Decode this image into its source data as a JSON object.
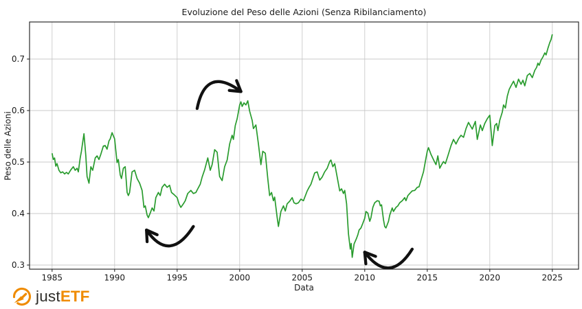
{
  "chart_data": {
    "type": "line",
    "title": "Evoluzione del Peso delle Azioni (Senza Ribilanciamento)",
    "xlabel": "Data",
    "ylabel": "Peso delle Azioni",
    "x_ticks": [
      1985,
      1990,
      1995,
      2000,
      2005,
      2010,
      2015,
      2020,
      2025
    ],
    "y_ticks": [
      0.3,
      0.4,
      0.5,
      0.6,
      0.7
    ],
    "xlim": [
      1983.2,
      2027.1
    ],
    "ylim": [
      0.292,
      0.772
    ],
    "grid": true,
    "grid_color": "#c9c9c9",
    "line_color": "#289b2d",
    "frame_color": "#2b2b2b",
    "series": [
      {
        "name": "Peso delle Azioni",
        "points": [
          [
            1985.0,
            0.517
          ],
          [
            1985.1,
            0.505
          ],
          [
            1985.2,
            0.508
          ],
          [
            1985.3,
            0.492
          ],
          [
            1985.4,
            0.497
          ],
          [
            1985.55,
            0.484
          ],
          [
            1985.7,
            0.479
          ],
          [
            1985.85,
            0.481
          ],
          [
            1986.0,
            0.477
          ],
          [
            1986.15,
            0.48
          ],
          [
            1986.3,
            0.477
          ],
          [
            1986.5,
            0.485
          ],
          [
            1986.7,
            0.491
          ],
          [
            1986.85,
            0.484
          ],
          [
            1987.0,
            0.488
          ],
          [
            1987.1,
            0.481
          ],
          [
            1987.25,
            0.508
          ],
          [
            1987.35,
            0.521
          ],
          [
            1987.45,
            0.539
          ],
          [
            1987.55,
            0.555
          ],
          [
            1987.7,
            0.512
          ],
          [
            1987.8,
            0.472
          ],
          [
            1987.95,
            0.459
          ],
          [
            1988.1,
            0.491
          ],
          [
            1988.25,
            0.484
          ],
          [
            1988.45,
            0.508
          ],
          [
            1988.6,
            0.512
          ],
          [
            1988.75,
            0.505
          ],
          [
            1988.9,
            0.515
          ],
          [
            1989.1,
            0.531
          ],
          [
            1989.25,
            0.532
          ],
          [
            1989.4,
            0.525
          ],
          [
            1989.55,
            0.541
          ],
          [
            1989.65,
            0.545
          ],
          [
            1989.8,
            0.557
          ],
          [
            1989.9,
            0.551
          ],
          [
            1990.0,
            0.545
          ],
          [
            1990.2,
            0.499
          ],
          [
            1990.3,
            0.505
          ],
          [
            1990.45,
            0.475
          ],
          [
            1990.55,
            0.468
          ],
          [
            1990.7,
            0.488
          ],
          [
            1990.85,
            0.491
          ],
          [
            1991.0,
            0.441
          ],
          [
            1991.1,
            0.435
          ],
          [
            1991.2,
            0.441
          ],
          [
            1991.4,
            0.481
          ],
          [
            1991.6,
            0.484
          ],
          [
            1991.8,
            0.468
          ],
          [
            1992.0,
            0.459
          ],
          [
            1992.2,
            0.445
          ],
          [
            1992.35,
            0.412
          ],
          [
            1992.45,
            0.415
          ],
          [
            1992.6,
            0.397
          ],
          [
            1992.7,
            0.392
          ],
          [
            1992.85,
            0.401
          ],
          [
            1993.0,
            0.411
          ],
          [
            1993.15,
            0.405
          ],
          [
            1993.3,
            0.431
          ],
          [
            1993.5,
            0.441
          ],
          [
            1993.65,
            0.435
          ],
          [
            1993.8,
            0.451
          ],
          [
            1994.0,
            0.457
          ],
          [
            1994.2,
            0.451
          ],
          [
            1994.4,
            0.455
          ],
          [
            1994.55,
            0.441
          ],
          [
            1994.75,
            0.437
          ],
          [
            1995.0,
            0.431
          ],
          [
            1995.15,
            0.419
          ],
          [
            1995.3,
            0.412
          ],
          [
            1995.5,
            0.419
          ],
          [
            1995.65,
            0.425
          ],
          [
            1995.85,
            0.439
          ],
          [
            1996.1,
            0.445
          ],
          [
            1996.3,
            0.439
          ],
          [
            1996.5,
            0.441
          ],
          [
            1996.65,
            0.448
          ],
          [
            1996.85,
            0.457
          ],
          [
            1997.0,
            0.471
          ],
          [
            1997.2,
            0.485
          ],
          [
            1997.45,
            0.508
          ],
          [
            1997.65,
            0.484
          ],
          [
            1997.8,
            0.495
          ],
          [
            1998.0,
            0.524
          ],
          [
            1998.2,
            0.519
          ],
          [
            1998.4,
            0.472
          ],
          [
            1998.6,
            0.464
          ],
          [
            1998.8,
            0.491
          ],
          [
            1999.0,
            0.504
          ],
          [
            1999.2,
            0.535
          ],
          [
            1999.4,
            0.552
          ],
          [
            1999.5,
            0.544
          ],
          [
            1999.65,
            0.571
          ],
          [
            1999.8,
            0.584
          ],
          [
            1999.9,
            0.597
          ],
          [
            2000.0,
            0.611
          ],
          [
            2000.1,
            0.617
          ],
          [
            2000.2,
            0.608
          ],
          [
            2000.35,
            0.615
          ],
          [
            2000.5,
            0.611
          ],
          [
            2000.65,
            0.619
          ],
          [
            2000.8,
            0.599
          ],
          [
            2001.0,
            0.581
          ],
          [
            2001.1,
            0.565
          ],
          [
            2001.3,
            0.572
          ],
          [
            2001.5,
            0.535
          ],
          [
            2001.7,
            0.495
          ],
          [
            2001.85,
            0.521
          ],
          [
            2002.05,
            0.517
          ],
          [
            2002.25,
            0.468
          ],
          [
            2002.4,
            0.435
          ],
          [
            2002.55,
            0.441
          ],
          [
            2002.7,
            0.425
          ],
          [
            2002.8,
            0.432
          ],
          [
            2003.0,
            0.392
          ],
          [
            2003.1,
            0.375
          ],
          [
            2003.3,
            0.404
          ],
          [
            2003.5,
            0.415
          ],
          [
            2003.65,
            0.405
          ],
          [
            2003.8,
            0.419
          ],
          [
            2004.0,
            0.424
          ],
          [
            2004.2,
            0.431
          ],
          [
            2004.35,
            0.421
          ],
          [
            2004.5,
            0.419
          ],
          [
            2004.7,
            0.421
          ],
          [
            2004.9,
            0.428
          ],
          [
            2005.1,
            0.425
          ],
          [
            2005.4,
            0.444
          ],
          [
            2005.55,
            0.451
          ],
          [
            2005.7,
            0.457
          ],
          [
            2006.0,
            0.479
          ],
          [
            2006.2,
            0.481
          ],
          [
            2006.4,
            0.465
          ],
          [
            2006.6,
            0.471
          ],
          [
            2006.8,
            0.481
          ],
          [
            2007.0,
            0.488
          ],
          [
            2007.2,
            0.501
          ],
          [
            2007.3,
            0.504
          ],
          [
            2007.45,
            0.491
          ],
          [
            2007.6,
            0.497
          ],
          [
            2007.8,
            0.471
          ],
          [
            2008.0,
            0.444
          ],
          [
            2008.15,
            0.448
          ],
          [
            2008.3,
            0.439
          ],
          [
            2008.4,
            0.445
          ],
          [
            2008.55,
            0.419
          ],
          [
            2008.7,
            0.361
          ],
          [
            2008.85,
            0.331
          ],
          [
            2008.92,
            0.342
          ],
          [
            2009.0,
            0.315
          ],
          [
            2009.15,
            0.341
          ],
          [
            2009.35,
            0.352
          ],
          [
            2009.45,
            0.359
          ],
          [
            2009.55,
            0.368
          ],
          [
            2009.7,
            0.372
          ],
          [
            2009.85,
            0.381
          ],
          [
            2010.0,
            0.391
          ],
          [
            2010.1,
            0.404
          ],
          [
            2010.25,
            0.401
          ],
          [
            2010.4,
            0.385
          ],
          [
            2010.5,
            0.392
          ],
          [
            2010.65,
            0.412
          ],
          [
            2010.8,
            0.421
          ],
          [
            2011.0,
            0.425
          ],
          [
            2011.15,
            0.424
          ],
          [
            2011.25,
            0.415
          ],
          [
            2011.35,
            0.417
          ],
          [
            2011.5,
            0.388
          ],
          [
            2011.6,
            0.375
          ],
          [
            2011.7,
            0.372
          ],
          [
            2011.9,
            0.385
          ],
          [
            2012.0,
            0.397
          ],
          [
            2012.2,
            0.411
          ],
          [
            2012.3,
            0.404
          ],
          [
            2012.5,
            0.412
          ],
          [
            2012.65,
            0.415
          ],
          [
            2012.8,
            0.421
          ],
          [
            2013.0,
            0.425
          ],
          [
            2013.2,
            0.431
          ],
          [
            2013.3,
            0.425
          ],
          [
            2013.45,
            0.435
          ],
          [
            2013.6,
            0.439
          ],
          [
            2013.8,
            0.444
          ],
          [
            2014.0,
            0.445
          ],
          [
            2014.2,
            0.451
          ],
          [
            2014.35,
            0.452
          ],
          [
            2014.5,
            0.465
          ],
          [
            2014.7,
            0.481
          ],
          [
            2014.85,
            0.501
          ],
          [
            2015.0,
            0.521
          ],
          [
            2015.1,
            0.528
          ],
          [
            2015.3,
            0.515
          ],
          [
            2015.55,
            0.502
          ],
          [
            2015.7,
            0.495
          ],
          [
            2015.85,
            0.512
          ],
          [
            2016.0,
            0.488
          ],
          [
            2016.15,
            0.495
          ],
          [
            2016.3,
            0.501
          ],
          [
            2016.45,
            0.497
          ],
          [
            2016.65,
            0.512
          ],
          [
            2016.9,
            0.532
          ],
          [
            2017.1,
            0.544
          ],
          [
            2017.3,
            0.535
          ],
          [
            2017.5,
            0.545
          ],
          [
            2017.7,
            0.552
          ],
          [
            2017.9,
            0.548
          ],
          [
            2018.1,
            0.565
          ],
          [
            2018.3,
            0.577
          ],
          [
            2018.6,
            0.564
          ],
          [
            2018.85,
            0.579
          ],
          [
            2019.0,
            0.544
          ],
          [
            2019.25,
            0.572
          ],
          [
            2019.4,
            0.561
          ],
          [
            2019.6,
            0.575
          ],
          [
            2019.8,
            0.584
          ],
          [
            2020.0,
            0.591
          ],
          [
            2020.2,
            0.532
          ],
          [
            2020.4,
            0.571
          ],
          [
            2020.55,
            0.575
          ],
          [
            2020.65,
            0.561
          ],
          [
            2020.8,
            0.581
          ],
          [
            2021.0,
            0.597
          ],
          [
            2021.1,
            0.611
          ],
          [
            2021.25,
            0.605
          ],
          [
            2021.4,
            0.628
          ],
          [
            2021.55,
            0.641
          ],
          [
            2021.7,
            0.648
          ],
          [
            2021.9,
            0.657
          ],
          [
            2022.1,
            0.645
          ],
          [
            2022.3,
            0.661
          ],
          [
            2022.5,
            0.651
          ],
          [
            2022.65,
            0.659
          ],
          [
            2022.8,
            0.648
          ],
          [
            2023.0,
            0.668
          ],
          [
            2023.2,
            0.672
          ],
          [
            2023.4,
            0.664
          ],
          [
            2023.6,
            0.678
          ],
          [
            2023.75,
            0.684
          ],
          [
            2023.85,
            0.692
          ],
          [
            2023.95,
            0.688
          ],
          [
            2024.1,
            0.698
          ],
          [
            2024.25,
            0.704
          ],
          [
            2024.4,
            0.712
          ],
          [
            2024.5,
            0.708
          ],
          [
            2024.65,
            0.721
          ],
          [
            2024.8,
            0.732
          ],
          [
            2024.9,
            0.738
          ],
          [
            2025.0,
            0.748
          ]
        ]
      }
    ],
    "annotations": {
      "color": "#111111",
      "arrows": [
        {
          "label": "peak-2000",
          "tail": [
            1996.6,
            0.604
          ],
          "control": [
            1997.3,
            0.688
          ],
          "tip": [
            2000.1,
            0.637
          ]
        },
        {
          "label": "low-1992",
          "tail": [
            1996.3,
            0.375
          ],
          "control": [
            1994.4,
            0.303
          ],
          "tip": [
            1992.55,
            0.368
          ]
        },
        {
          "label": "low-2009",
          "tail": [
            2013.8,
            0.331
          ],
          "control": [
            2012.0,
            0.261
          ],
          "tip": [
            2010.0,
            0.325
          ]
        }
      ]
    }
  },
  "branding": {
    "just": "just",
    "etf": "ETF",
    "orange": "#ef8b00",
    "dark": "#2e2d29"
  }
}
